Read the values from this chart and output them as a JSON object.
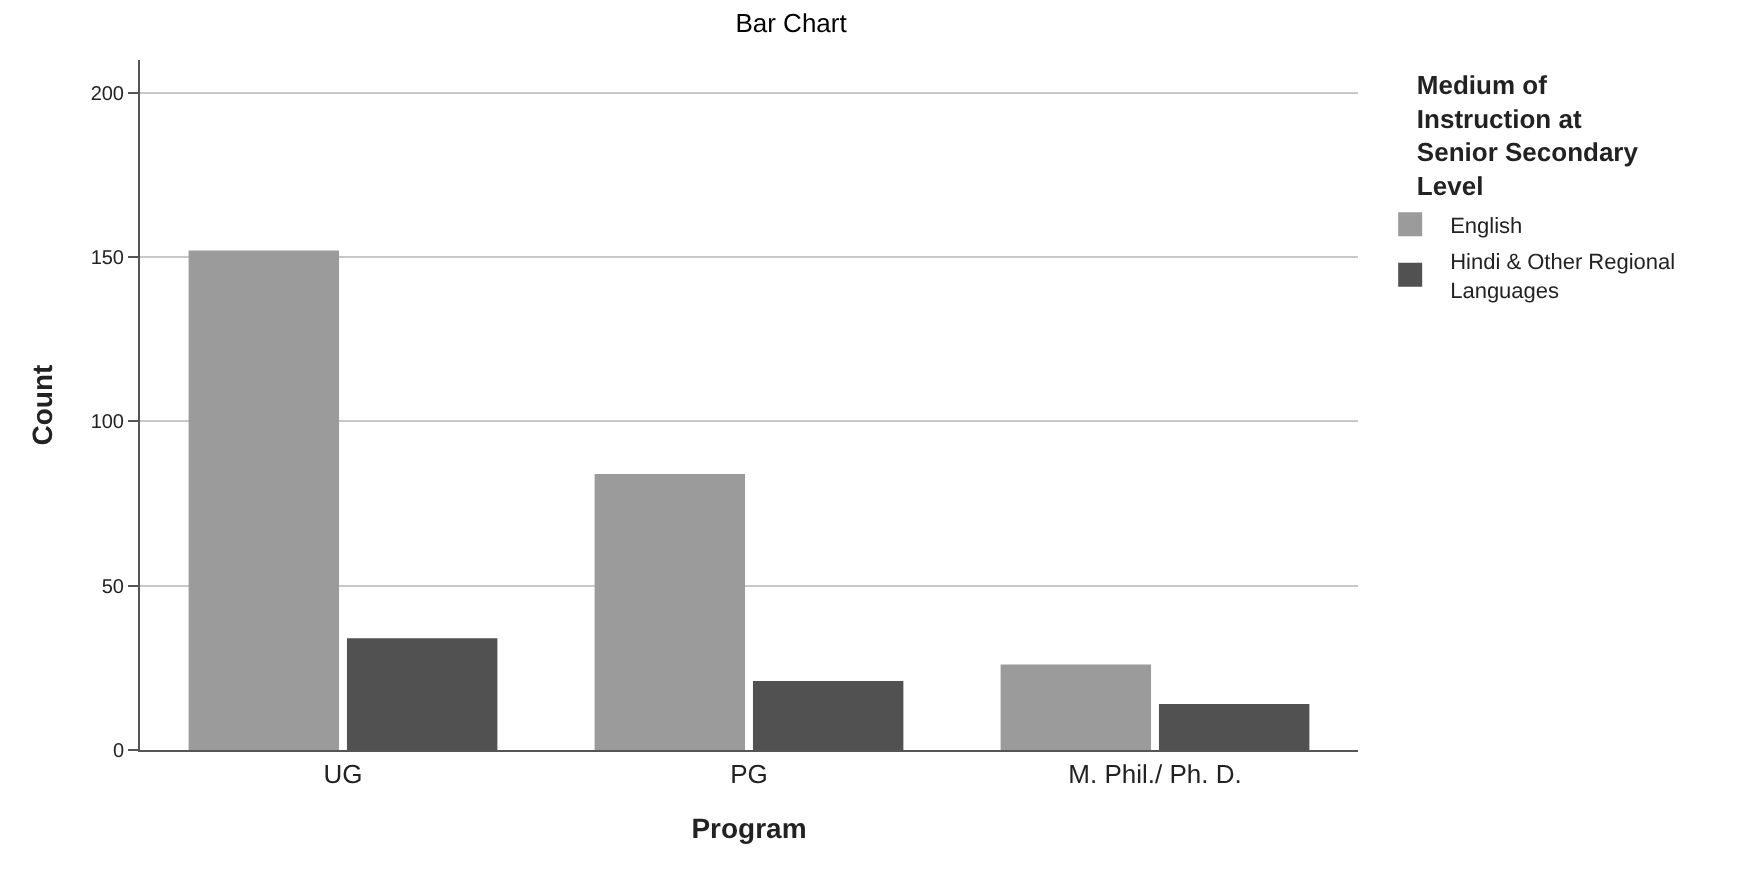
{
  "chart_data": {
    "type": "bar",
    "title": "Bar Chart",
    "xlabel": "Program",
    "ylabel": "Count",
    "legend_title": "Medium of Instruction at Senior Secondary Level",
    "categories": [
      "UG",
      "PG",
      "M. Phil./ Ph. D."
    ],
    "series": [
      {
        "name": "English",
        "color": "#9b9b9b",
        "values": [
          152,
          84,
          26
        ]
      },
      {
        "name": "Hindi & Other Regional Languages",
        "color": "#515151",
        "values": [
          34,
          21,
          14
        ]
      }
    ],
    "ylim": [
      0,
      210
    ],
    "yticks": [
      0,
      50,
      100,
      150,
      200
    ],
    "grid": "y",
    "legend": "top right"
  }
}
